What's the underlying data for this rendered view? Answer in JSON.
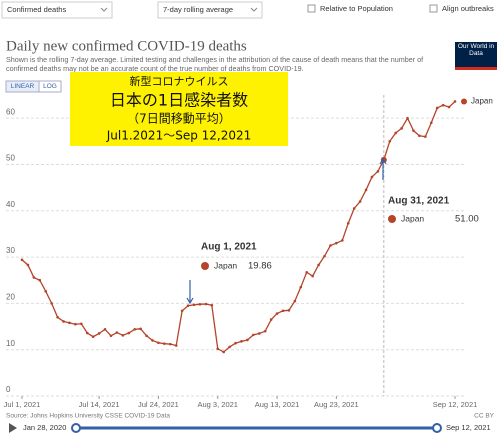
{
  "controls": {
    "metric": "Confirmed deaths",
    "smoothing": "7-day rolling average",
    "relative": "Relative to Population",
    "align": "Align outbreaks",
    "linear": "LINEAR",
    "log": "LOG"
  },
  "logo": "Our World in Data",
  "chart_data": {
    "type": "line",
    "title": "Daily new confirmed COVID-19 deaths",
    "subtitle": "Shown is the rolling 7-day average. Limited testing and challenges in the attribution of the cause of death means that the number of confirmed deaths may not be an accurate count of the true number of deaths from COVID-19.",
    "highlight_box": [
      "新型コロナウイルス",
      "日本の1日感染者数",
      "（7日間移動平均）",
      "Jul1.2021～Sep 12,2021"
    ],
    "x": [
      "2021-07-01",
      "2021-07-02",
      "2021-07-03",
      "2021-07-04",
      "2021-07-05",
      "2021-07-06",
      "2021-07-07",
      "2021-07-08",
      "2021-07-09",
      "2021-07-10",
      "2021-07-11",
      "2021-07-12",
      "2021-07-13",
      "2021-07-14",
      "2021-07-15",
      "2021-07-16",
      "2021-07-17",
      "2021-07-18",
      "2021-07-19",
      "2021-07-20",
      "2021-07-21",
      "2021-07-22",
      "2021-07-23",
      "2021-07-24",
      "2021-07-25",
      "2021-07-26",
      "2021-07-27",
      "2021-07-28",
      "2021-07-29",
      "2021-07-30",
      "2021-07-31",
      "2021-08-01",
      "2021-08-02",
      "2021-08-03",
      "2021-08-04",
      "2021-08-05",
      "2021-08-06",
      "2021-08-07",
      "2021-08-08",
      "2021-08-09",
      "2021-08-10",
      "2021-08-11",
      "2021-08-12",
      "2021-08-13",
      "2021-08-14",
      "2021-08-15",
      "2021-08-16",
      "2021-08-17",
      "2021-08-18",
      "2021-08-19",
      "2021-08-20",
      "2021-08-21",
      "2021-08-22",
      "2021-08-23",
      "2021-08-24",
      "2021-08-25",
      "2021-08-26",
      "2021-08-27",
      "2021-08-28",
      "2021-08-29",
      "2021-08-30",
      "2021-08-31",
      "2021-09-01",
      "2021-09-02",
      "2021-09-03",
      "2021-09-04",
      "2021-09-05",
      "2021-09-06",
      "2021-09-07",
      "2021-09-08",
      "2021-09-09",
      "2021-09-10",
      "2021-09-11",
      "2021-09-12"
    ],
    "series": [
      {
        "name": "Japan",
        "color": "#b5442a",
        "values": [
          29.4,
          28.3,
          25.6,
          25.0,
          22.6,
          20.0,
          17.0,
          16.1,
          15.8,
          15.5,
          15.6,
          13.6,
          12.8,
          13.5,
          14.4,
          13.0,
          13.7,
          13.1,
          13.6,
          14.4,
          14.5,
          13.0,
          12.0,
          11.5,
          11.3,
          11.2,
          10.9,
          18.4,
          19.5,
          19.7,
          19.8,
          19.86,
          19.6,
          10.2,
          9.5,
          10.6,
          11.4,
          11.8,
          12.1,
          13.2,
          13.5,
          14.0,
          16.5,
          17.8,
          18.4,
          18.5,
          20.5,
          23.5,
          26.7,
          25.9,
          28.3,
          30.2,
          32.5,
          33.0,
          33.6,
          37.3,
          40.5,
          42.0,
          44.5,
          47.3,
          48.5,
          51.0,
          55.0,
          56.8,
          57.8,
          60.0,
          57.3,
          56.2,
          56.0,
          59.0,
          62.2,
          62.8,
          62.4,
          63.6
        ]
      }
    ],
    "xlim": [
      "2021-07-01",
      "2021-09-12"
    ],
    "xticks": [
      {
        "value": "2021-07-01",
        "label": "Jul 1, 2021"
      },
      {
        "value": "2021-07-14",
        "label": "Jul 14, 2021"
      },
      {
        "value": "2021-07-24",
        "label": "Jul 24, 2021"
      },
      {
        "value": "2021-08-03",
        "label": "Aug 3, 2021"
      },
      {
        "value": "2021-08-13",
        "label": "Aug 13, 2021"
      },
      {
        "value": "2021-08-23",
        "label": "Aug 23, 2021"
      },
      {
        "value": "2021-09-12",
        "label": "Sep 12, 2021"
      }
    ],
    "ylim": [
      0,
      65
    ],
    "yticks": [
      0,
      10,
      20,
      30,
      40,
      50,
      60
    ],
    "grid": true,
    "annotations": [
      {
        "date": "Aug 1, 2021",
        "series": "Japan",
        "value": "19.86"
      },
      {
        "date": "Aug 31, 2021",
        "series": "Japan",
        "value": "51.00"
      }
    ],
    "source": "Source: Johns Hopkins University CSSE COVID-19 Data",
    "license": "CC BY"
  },
  "timeline": {
    "start": "Jan 28, 2020",
    "end": "Sep 12, 2021"
  }
}
